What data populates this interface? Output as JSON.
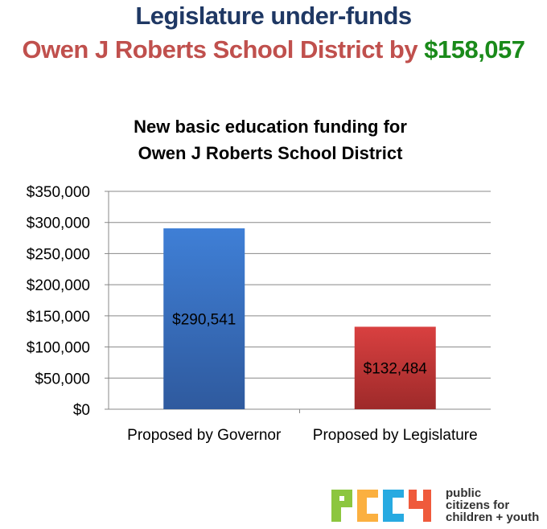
{
  "header": {
    "line1": "Legislature under-funds",
    "line2_prefix": "Owen J Roberts School District by ",
    "line2_amount": "$158,057"
  },
  "chart_data": {
    "type": "bar",
    "title_lines": [
      "New basic education funding for",
      "Owen J Roberts School District"
    ],
    "categories": [
      "Proposed by Governor",
      "Proposed by Legislature"
    ],
    "values": [
      290541,
      132484
    ],
    "data_labels": [
      "$290,541",
      "$132,484"
    ],
    "colors": [
      "#3a6fc0",
      "#c0393a"
    ],
    "ylim": [
      0,
      350000
    ],
    "yticks": [
      0,
      50000,
      100000,
      150000,
      200000,
      250000,
      300000,
      350000
    ],
    "ytick_labels": [
      "$0",
      "$50,000",
      "$100,000",
      "$150,000",
      "$200,000",
      "$250,000",
      "$300,000",
      "$350,000"
    ],
    "grid": true,
    "xlabel": "",
    "ylabel": ""
  },
  "logo": {
    "letters": "PCCY",
    "letter_colors": [
      "#8cc63f",
      "#fbb040",
      "#27aae1",
      "#ef5a3c"
    ],
    "text_lines": [
      "public",
      "citizens for",
      "children + youth"
    ]
  }
}
